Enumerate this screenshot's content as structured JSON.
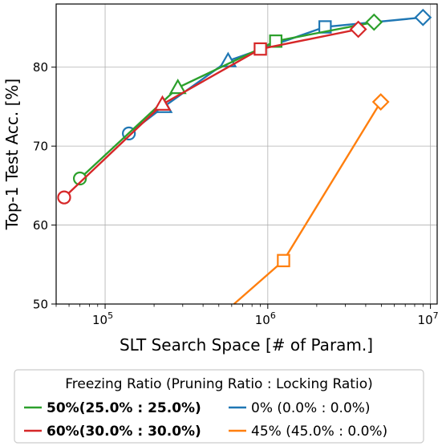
{
  "chart_data": {
    "type": "line",
    "xlabel": "SLT Search Space [# of Param.]",
    "ylabel": "Top-1 Test Acc. [%]",
    "xscale": "log",
    "xlim": [
      50000,
      11000000
    ],
    "ylim": [
      50,
      88
    ],
    "grid": true,
    "x_ticks": [
      {
        "value": 100000,
        "base": "10",
        "exp": "5"
      },
      {
        "value": 1000000,
        "base": "10",
        "exp": "6"
      },
      {
        "value": 10000000,
        "base": "10",
        "exp": "7"
      }
    ],
    "y_ticks": [
      {
        "value": 50,
        "label": "50"
      },
      {
        "value": 60,
        "label": "60"
      },
      {
        "value": 70,
        "label": "70"
      },
      {
        "value": 80,
        "label": "80"
      }
    ],
    "legend": {
      "position": "bottom",
      "title": "Freezing Ratio (Pruning Ratio : Locking Ratio)"
    },
    "series": [
      {
        "name": "0% (0.0% : 0.0%)",
        "bold": false,
        "color": "#1f77b4",
        "points": [
          {
            "x": 140000,
            "y": 71.6,
            "marker": "circle"
          },
          {
            "x": 230000,
            "y": 75.0,
            "marker": "triangle"
          },
          {
            "x": 570000,
            "y": 80.8,
            "marker": "triangle"
          },
          {
            "x": 2250000,
            "y": 85.1,
            "marker": "square"
          },
          {
            "x": 9000000,
            "y": 86.3,
            "marker": "diamond"
          }
        ]
      },
      {
        "name": "45% (45.0% : 0.0%)",
        "bold": false,
        "color": "#ff7f0e",
        "points": [
          {
            "x": 620000,
            "y": 50.0,
            "marker": "none"
          },
          {
            "x": 1250000,
            "y": 55.5,
            "marker": "square"
          },
          {
            "x": 4950000,
            "y": 75.6,
            "marker": "diamond"
          }
        ]
      },
      {
        "name": "50%(25.0% : 25.0%)",
        "bold": true,
        "color": "#2ca02c",
        "points": [
          {
            "x": 70000,
            "y": 65.9,
            "marker": "circle"
          },
          {
            "x": 280000,
            "y": 77.4,
            "marker": "triangle"
          },
          {
            "x": 1120000,
            "y": 83.3,
            "marker": "square"
          },
          {
            "x": 4500000,
            "y": 85.7,
            "marker": "diamond"
          }
        ]
      },
      {
        "name": "60%(30.0% : 30.0%)",
        "bold": true,
        "color": "#d62728",
        "points": [
          {
            "x": 56000,
            "y": 63.5,
            "marker": "circle"
          },
          {
            "x": 225000,
            "y": 75.3,
            "marker": "triangle"
          },
          {
            "x": 900000,
            "y": 82.3,
            "marker": "square"
          },
          {
            "x": 3600000,
            "y": 84.8,
            "marker": "diamond"
          }
        ]
      }
    ]
  }
}
